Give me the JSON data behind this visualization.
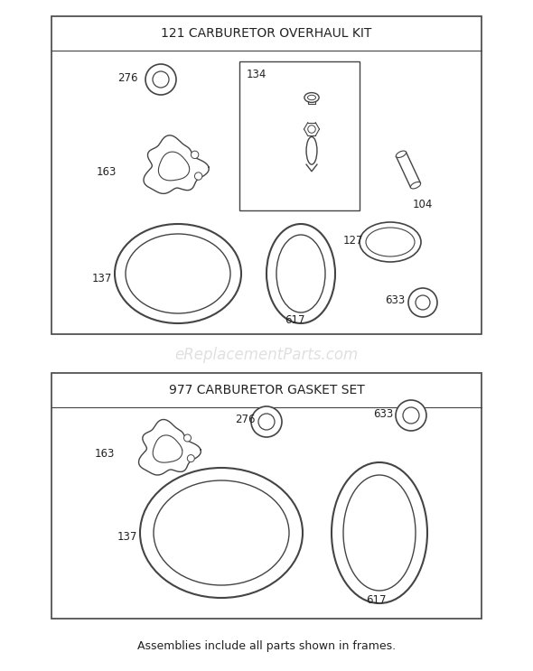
{
  "bg_color": "#ffffff",
  "line_color": "#444444",
  "text_color": "#222222",
  "watermark": "eReplacementParts.com",
  "watermark_color": "#cccccc",
  "footnote": "Assemblies include all parts shown in frames.",
  "section1_title": "121 CARBURETOR OVERHAUL KIT",
  "section2_title": "977 CARBURETOR GASKET SET",
  "font_size_title": 10,
  "font_size_label": 8.5,
  "font_size_footnote": 9,
  "font_size_watermark": 12
}
